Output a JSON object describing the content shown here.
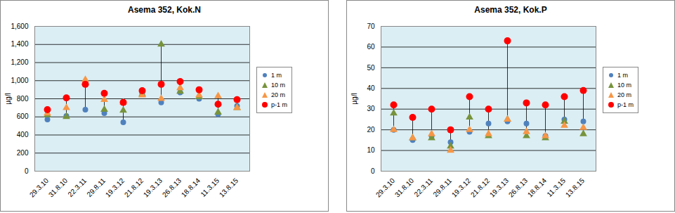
{
  "chart_data": [
    {
      "type": "scatter",
      "title": "Asema 352, Kok.N",
      "y_label": "µg/l",
      "categories": [
        "29.3.10",
        "31.8.10",
        "22.3.11",
        "29.8.11",
        "19.3.12",
        "21.8.12",
        "19.3.13",
        "26.8.13",
        "18.8.14",
        "11.3.15",
        "13.8.15"
      ],
      "series": [
        {
          "name": "1 m",
          "color": "#4f81bd",
          "marker": "circle",
          "values": [
            570,
            610,
            680,
            640,
            540,
            860,
            760,
            870,
            800,
            630,
            720
          ]
        },
        {
          "name": "10 m",
          "color": "#77933c",
          "marker": "triangle",
          "values": [
            620,
            600,
            980,
            680,
            670,
            850,
            1400,
            880,
            820,
            650,
            700
          ]
        },
        {
          "name": "20 m",
          "color": "#f79646",
          "marker": "triangle",
          "values": [
            640,
            700,
            1010,
            790,
            760,
            840,
            800,
            920,
            840,
            830,
            700
          ]
        },
        {
          "name": "p-1 m",
          "color": "#ff0000",
          "marker": "circle",
          "values": [
            680,
            810,
            960,
            860,
            760,
            890,
            960,
            990,
            900,
            740,
            790
          ]
        }
      ],
      "ylim": [
        0,
        1600
      ],
      "yticks": [
        0,
        200,
        400,
        600,
        800,
        1000,
        1200,
        1400,
        1600
      ],
      "grid": true,
      "legend": "right"
    },
    {
      "type": "scatter",
      "title": "Asema 352, Kok.P",
      "y_label": "µg/l",
      "categories": [
        "29.3.10",
        "31.8.10",
        "22.3.11",
        "29.8.11",
        "19.3.12",
        "21.8.12",
        "19.3.13",
        "26.8.13",
        "18.8.14",
        "11.3.15",
        "13.8.15"
      ],
      "series": [
        {
          "name": "1 m",
          "color": "#4f81bd",
          "marker": "circle",
          "values": [
            20,
            15,
            17,
            14,
            19,
            23,
            24,
            23,
            17,
            25,
            24
          ]
        },
        {
          "name": "10 m",
          "color": "#77933c",
          "marker": "triangle",
          "values": [
            28,
            16,
            16,
            12,
            26,
            17,
            25,
            17,
            16,
            24,
            18
          ]
        },
        {
          "name": "20 m",
          "color": "#f79646",
          "marker": "triangle",
          "values": [
            20,
            16,
            18,
            10,
            20,
            18,
            25,
            19,
            17,
            22,
            21
          ]
        },
        {
          "name": "p-1 m",
          "color": "#ff0000",
          "marker": "circle",
          "values": [
            32,
            26,
            30,
            20,
            36,
            30,
            63,
            33,
            32,
            36,
            39
          ]
        }
      ],
      "ylim": [
        0,
        70
      ],
      "yticks": [
        0,
        10,
        20,
        30,
        40,
        50,
        60,
        70
      ],
      "grid": true,
      "legend": "right"
    }
  ]
}
